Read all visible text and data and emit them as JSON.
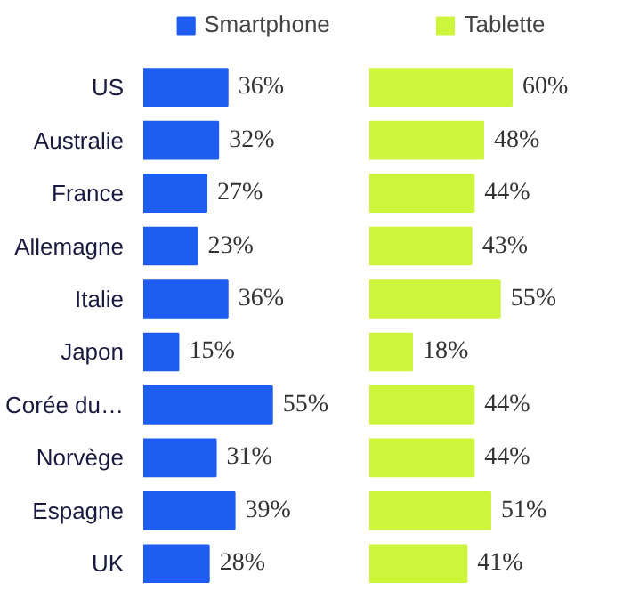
{
  "chart_data": [
    {
      "type": "bar",
      "orientation": "horizontal",
      "categories": [
        "US",
        "Australie",
        "France",
        "Allemagne",
        "Italie",
        "Japon",
        "Corée du…",
        "Norvège",
        "Espagne",
        "UK"
      ],
      "legend": "top",
      "grid": false,
      "series": [
        {
          "name": "Smartphone",
          "color": "#1f5cf0",
          "values": [
            36,
            32,
            27,
            23,
            36,
            15,
            55,
            31,
            39,
            28
          ],
          "value_labels": [
            "36%",
            "32%",
            "27%",
            "23%",
            "36%",
            "15%",
            "55%",
            "31%",
            "39%",
            "28%"
          ]
        }
      ]
    },
    {
      "type": "bar",
      "orientation": "horizontal",
      "categories": [
        null,
        null,
        null,
        null,
        null,
        null,
        null,
        null,
        null,
        null
      ],
      "legend": "top",
      "grid": false,
      "tick_labels": false,
      "series": [
        {
          "name": "Tablette",
          "color": "#cdf53c",
          "values": [
            60,
            48,
            44,
            43,
            55,
            18,
            44,
            44,
            51,
            41
          ],
          "value_labels": [
            "60%",
            "48%",
            "44%",
            "43%",
            "55%",
            "18%",
            "44%",
            "44%",
            "51%",
            "41%"
          ]
        }
      ]
    }
  ]
}
